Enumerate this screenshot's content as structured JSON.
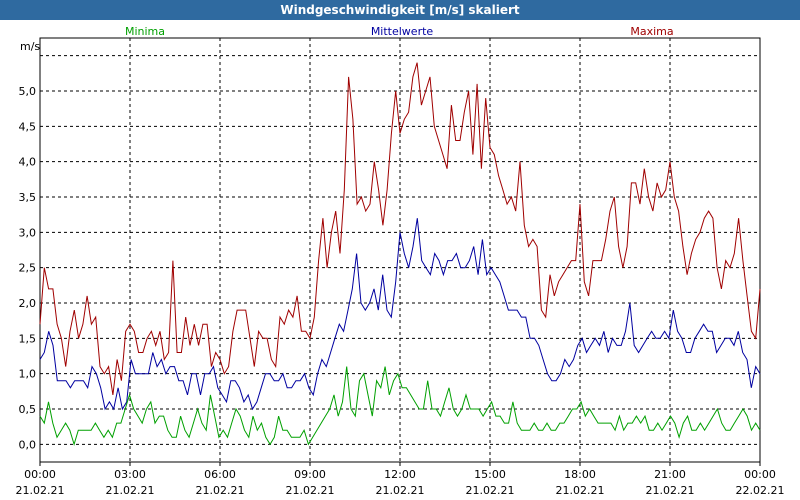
{
  "window": {
    "title": "Windgeschwindigkeit [m/s] skaliert"
  },
  "chart_data": {
    "type": "line",
    "title": "Windgeschwindigkeit [m/s] skaliert",
    "ylabel": "m/s",
    "xlabel": "",
    "ylim": [
      -0.25,
      5.75
    ],
    "xlim": [
      0,
      24
    ],
    "grid": true,
    "y_ticks": [
      "0,0",
      "0,5",
      "1,0",
      "1,5",
      "2,0",
      "2,5",
      "3,0",
      "3,5",
      "4,0",
      "4,5",
      "5,0"
    ],
    "y_tick_values": [
      0,
      0.5,
      1,
      1.5,
      2,
      2.5,
      3,
      3.5,
      4,
      4.5,
      5
    ],
    "x_ticks": [
      {
        "time": "00:00",
        "date": "21.02.21"
      },
      {
        "time": "03:00",
        "date": "21.02.21"
      },
      {
        "time": "06:00",
        "date": "21.02.21"
      },
      {
        "time": "09:00",
        "date": "21.02.21"
      },
      {
        "time": "12:00",
        "date": "21.02.21"
      },
      {
        "time": "15:00",
        "date": "21.02.21"
      },
      {
        "time": "18:00",
        "date": "21.02.21"
      },
      {
        "time": "21:00",
        "date": "21.02.21"
      },
      {
        "time": "00:00",
        "date": "22.02.21"
      }
    ],
    "legend": [
      {
        "name": "Minima",
        "color": "#00a000"
      },
      {
        "name": "Mittelwerte",
        "color": "#0000a0"
      },
      {
        "name": "Maxima",
        "color": "#a00000"
      }
    ],
    "x_hours_step": 0.25,
    "series": [
      {
        "name": "Maxima",
        "color": "#a00000",
        "values": [
          1.7,
          2.5,
          2.2,
          2.2,
          1.7,
          1.5,
          1.1,
          1.6,
          1.9,
          1.5,
          1.7,
          2.1,
          1.7,
          1.8,
          1.1,
          1.0,
          1.1,
          0.7,
          1.2,
          0.9,
          1.6,
          1.7,
          1.6,
          1.3,
          1.3,
          1.5,
          1.6,
          1.4,
          1.6,
          1.2,
          1.3,
          2.6,
          1.3,
          1.3,
          1.8,
          1.4,
          1.7,
          1.4,
          1.7,
          1.7,
          1.1,
          1.3,
          1.2,
          1.0,
          1.1,
          1.6,
          1.9,
          1.9,
          1.9,
          1.5,
          1.1,
          1.6,
          1.5,
          1.5,
          1.2,
          1.1,
          1.8,
          1.7,
          1.9,
          1.8,
          2.1,
          1.6,
          1.6,
          1.5,
          1.8,
          2.6,
          3.2,
          2.5,
          3.0,
          3.3,
          2.7,
          3.6,
          5.2,
          4.6,
          3.4,
          3.5,
          3.3,
          3.4,
          4.0,
          3.6,
          3.1,
          3.6,
          4.4,
          5.0,
          4.4,
          4.6,
          4.7,
          5.2,
          5.4,
          4.8,
          5.0,
          5.2,
          4.5,
          4.3,
          4.1,
          3.9,
          4.8,
          4.3,
          4.3,
          4.7,
          5.0,
          4.1,
          5.1,
          3.9,
          4.9,
          4.2,
          4.1,
          3.8,
          3.6,
          3.4,
          3.5,
          3.3,
          4.0,
          3.1,
          2.8,
          2.9,
          2.8,
          1.9,
          1.8,
          2.4,
          2.1,
          2.3,
          2.4,
          2.5,
          2.6,
          2.6,
          3.4,
          2.3,
          2.1,
          2.6,
          2.6,
          2.6,
          2.9,
          3.3,
          3.5,
          2.8,
          2.5,
          2.8,
          3.7,
          3.7,
          3.4,
          3.9,
          3.5,
          3.3,
          3.7,
          3.5,
          3.6,
          4.0,
          3.5,
          3.3,
          2.8,
          2.4,
          2.7,
          2.9,
          3.0,
          3.2,
          3.3,
          3.2,
          2.5,
          2.2,
          2.6,
          2.5,
          2.7,
          3.2,
          2.6,
          2.1,
          1.6,
          1.5,
          2.2
        ]
      },
      {
        "name": "Mittelwerte",
        "color": "#0000a0",
        "values": [
          1.2,
          1.3,
          1.6,
          1.4,
          0.9,
          0.9,
          0.9,
          0.8,
          0.9,
          0.9,
          0.9,
          0.8,
          1.1,
          1.0,
          0.8,
          0.5,
          0.6,
          0.5,
          0.8,
          0.5,
          0.6,
          1.2,
          1.0,
          1.0,
          1.0,
          1.0,
          1.3,
          1.1,
          1.2,
          1.0,
          1.1,
          1.1,
          0.9,
          0.9,
          0.7,
          1.0,
          1.0,
          0.7,
          1.0,
          1.0,
          1.1,
          0.8,
          0.7,
          0.6,
          0.9,
          0.9,
          0.8,
          0.6,
          0.7,
          0.5,
          0.6,
          0.8,
          1.0,
          1.0,
          0.9,
          0.9,
          1.0,
          0.8,
          0.8,
          0.9,
          0.9,
          1.0,
          0.8,
          0.7,
          1.0,
          1.2,
          1.1,
          1.3,
          1.5,
          1.7,
          1.6,
          1.9,
          2.2,
          2.7,
          2.0,
          1.9,
          2.0,
          2.2,
          1.9,
          2.4,
          1.9,
          1.8,
          2.3,
          3.0,
          2.7,
          2.5,
          2.8,
          3.2,
          2.6,
          2.5,
          2.4,
          2.7,
          2.6,
          2.4,
          2.6,
          2.6,
          2.7,
          2.5,
          2.5,
          2.6,
          2.8,
          2.4,
          2.9,
          2.4,
          2.5,
          2.4,
          2.3,
          2.1,
          1.9,
          1.9,
          1.9,
          1.8,
          1.8,
          1.5,
          1.5,
          1.4,
          1.2,
          1.0,
          0.9,
          0.9,
          1.0,
          1.2,
          1.1,
          1.2,
          1.4,
          1.5,
          1.3,
          1.4,
          1.5,
          1.4,
          1.6,
          1.3,
          1.5,
          1.4,
          1.4,
          1.6,
          2.0,
          1.4,
          1.3,
          1.4,
          1.5,
          1.6,
          1.5,
          1.5,
          1.6,
          1.5,
          1.9,
          1.6,
          1.5,
          1.3,
          1.3,
          1.5,
          1.6,
          1.7,
          1.6,
          1.6,
          1.3,
          1.4,
          1.5,
          1.5,
          1.4,
          1.6,
          1.3,
          1.2,
          0.8,
          1.1,
          1.0
        ]
      },
      {
        "name": "Minima",
        "color": "#00a000",
        "values": [
          0.4,
          0.3,
          0.6,
          0.3,
          0.1,
          0.2,
          0.3,
          0.2,
          0.0,
          0.2,
          0.2,
          0.2,
          0.2,
          0.3,
          0.2,
          0.1,
          0.2,
          0.1,
          0.3,
          0.3,
          0.5,
          0.7,
          0.5,
          0.4,
          0.3,
          0.5,
          0.6,
          0.3,
          0.4,
          0.4,
          0.2,
          0.1,
          0.1,
          0.4,
          0.2,
          0.1,
          0.3,
          0.5,
          0.3,
          0.2,
          0.7,
          0.4,
          0.1,
          0.2,
          0.1,
          0.3,
          0.5,
          0.4,
          0.2,
          0.1,
          0.4,
          0.2,
          0.3,
          0.1,
          0.0,
          0.1,
          0.4,
          0.2,
          0.2,
          0.1,
          0.1,
          0.1,
          0.2,
          0.0,
          0.1,
          0.2,
          0.3,
          0.4,
          0.5,
          0.7,
          0.4,
          0.6,
          1.1,
          0.5,
          0.4,
          0.9,
          1.0,
          0.7,
          0.4,
          0.9,
          0.8,
          1.1,
          0.7,
          0.9,
          1.0,
          0.8,
          0.8,
          0.7,
          0.6,
          0.5,
          0.5,
          0.9,
          0.5,
          0.5,
          0.4,
          0.6,
          0.8,
          0.5,
          0.4,
          0.5,
          0.7,
          0.5,
          0.5,
          0.5,
          0.4,
          0.5,
          0.6,
          0.4,
          0.4,
          0.3,
          0.3,
          0.6,
          0.3,
          0.2,
          0.2,
          0.2,
          0.3,
          0.2,
          0.2,
          0.3,
          0.2,
          0.2,
          0.3,
          0.3,
          0.4,
          0.5,
          0.5,
          0.6,
          0.4,
          0.5,
          0.4,
          0.3,
          0.3,
          0.3,
          0.3,
          0.2,
          0.4,
          0.2,
          0.3,
          0.3,
          0.4,
          0.3,
          0.4,
          0.2,
          0.2,
          0.3,
          0.2,
          0.3,
          0.4,
          0.3,
          0.1,
          0.3,
          0.4,
          0.2,
          0.2,
          0.3,
          0.2,
          0.3,
          0.4,
          0.5,
          0.3,
          0.2,
          0.2,
          0.3,
          0.4,
          0.5,
          0.4,
          0.2,
          0.3,
          0.2
        ]
      }
    ]
  }
}
